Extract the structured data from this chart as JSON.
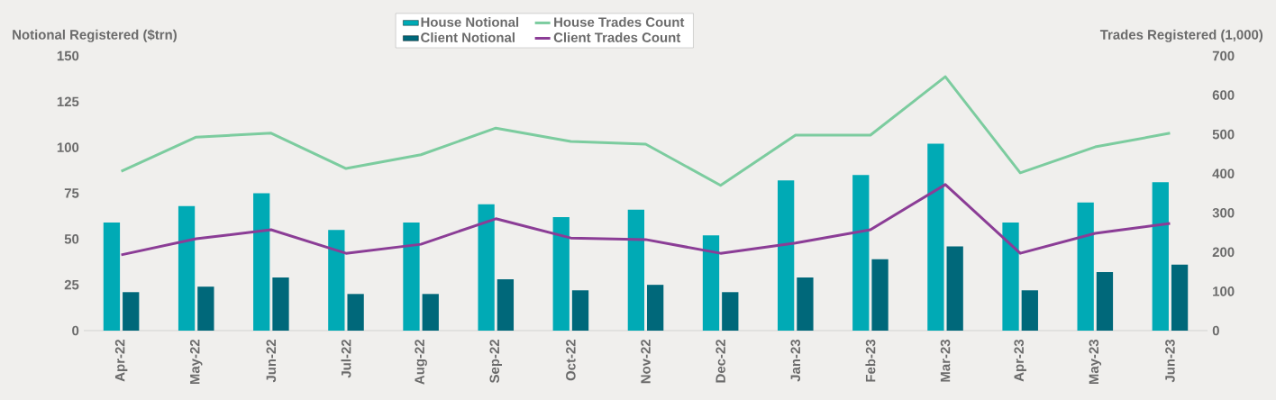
{
  "chart_data": {
    "type": "bar",
    "ylabel": "Notional Registered ($trn)",
    "y2label": "Trades Registered (1,000)",
    "categories": [
      "Apr-22",
      "May-22",
      "Jun-22",
      "Jul-22",
      "Aug-22",
      "Sep-22",
      "Oct-22",
      "Nov-22",
      "Dec-22",
      "Jan-23",
      "Feb-23",
      "Mar-23",
      "Apr-23",
      "May-23",
      "Jun-23"
    ],
    "ylim": [
      0,
      150
    ],
    "yticks": [
      0,
      25,
      50,
      75,
      100,
      125,
      150
    ],
    "y2lim": [
      0,
      700
    ],
    "y2ticks": [
      0,
      100,
      200,
      300,
      400,
      500,
      600,
      700
    ],
    "legend": "top",
    "series": [
      {
        "name": "House Notional",
        "color": "#00aab5",
        "values": [
          59,
          68,
          75,
          55,
          59,
          69,
          62,
          66,
          52,
          82,
          85,
          102,
          59,
          70,
          81
        ]
      },
      {
        "name": "Client Notional",
        "color": "#00687a",
        "values": [
          21,
          24,
          29,
          20,
          20,
          28,
          22,
          25,
          21,
          29,
          39,
          46,
          22,
          32,
          36
        ]
      },
      {
        "name": "House Trades Count",
        "type": "line",
        "axis": "y2",
        "color": "#7ccc9f",
        "values": [
          406,
          493,
          503,
          413,
          448,
          516,
          482,
          475,
          370,
          498,
          498,
          647,
          402,
          468,
          503
        ]
      },
      {
        "name": "Client Trades Count",
        "type": "line",
        "axis": "y2",
        "color": "#8b3d96",
        "values": [
          193,
          234,
          257,
          197,
          220,
          285,
          236,
          232,
          197,
          223,
          257,
          372,
          197,
          248,
          273
        ]
      }
    ]
  }
}
